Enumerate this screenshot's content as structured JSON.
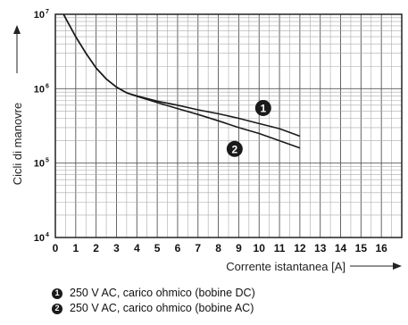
{
  "chart_data": {
    "type": "line",
    "title": "",
    "xlabel": "Corrente istantanea [A]",
    "ylabel": "Cicli di manovre",
    "x_ticks": [
      "0",
      "1",
      "2",
      "3",
      "4",
      "5",
      "6",
      "7",
      "8",
      "9",
      "10",
      "11",
      "12",
      "13",
      "14",
      "15",
      "16"
    ],
    "xlim": [
      0,
      17
    ],
    "y_scale": "log",
    "ylim": [
      10000,
      10000000
    ],
    "y_ticks": [
      {
        "value": 10000,
        "base": "10",
        "exp": "4"
      },
      {
        "value": 100000,
        "base": "10",
        "exp": "5"
      },
      {
        "value": 1000000,
        "base": "10",
        "exp": "6"
      },
      {
        "value": 10000000,
        "base": "10",
        "exp": "7"
      }
    ],
    "grid": true,
    "series": [
      {
        "marker": "1",
        "color": "#1a1a1a",
        "points": [
          [
            0.4,
            10000000
          ],
          [
            1,
            5000000
          ],
          [
            1.5,
            3000000
          ],
          [
            2,
            1900000
          ],
          [
            2.5,
            1350000
          ],
          [
            3,
            1050000
          ],
          [
            3.5,
            880000
          ],
          [
            4,
            800000
          ],
          [
            5,
            680000
          ],
          [
            6,
            600000
          ],
          [
            7,
            520000
          ],
          [
            8,
            460000
          ],
          [
            9,
            400000
          ],
          [
            10,
            340000
          ],
          [
            11,
            290000
          ],
          [
            12,
            230000
          ]
        ]
      },
      {
        "marker": "2",
        "color": "#1a1a1a",
        "points": [
          [
            0.4,
            10000000
          ],
          [
            1,
            5000000
          ],
          [
            1.5,
            3000000
          ],
          [
            2,
            1900000
          ],
          [
            2.5,
            1350000
          ],
          [
            3,
            1050000
          ],
          [
            3.5,
            880000
          ],
          [
            4,
            790000
          ],
          [
            5,
            650000
          ],
          [
            6,
            540000
          ],
          [
            7,
            450000
          ],
          [
            8,
            370000
          ],
          [
            9,
            300000
          ],
          [
            10,
            250000
          ],
          [
            11,
            200000
          ],
          [
            12,
            160000
          ]
        ]
      }
    ],
    "markers_on_chart": [
      {
        "label": "1",
        "x": 10.2,
        "y": 550000
      },
      {
        "label": "2",
        "x": 8.8,
        "y": 155000
      }
    ]
  },
  "legend": [
    {
      "marker": "1",
      "text": "250 V AC, carico ohmico (bobine DC)"
    },
    {
      "marker": "2",
      "text": "250 V AC, carico ohmico (bobine AC)"
    }
  ]
}
